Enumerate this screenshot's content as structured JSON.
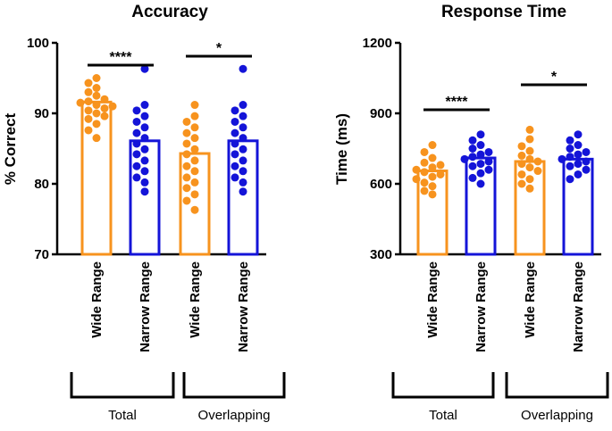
{
  "colors": {
    "wide": "#F7931E",
    "narrow": "#1414D8",
    "wide_bar": "#F7931E",
    "axis": "#000000"
  },
  "chart_data": [
    {
      "type": "bar",
      "title": "Accuracy",
      "ylabel": "% Correct",
      "ylim": [
        70,
        100
      ],
      "yticks": [
        70,
        80,
        90,
        100
      ],
      "categories": [
        "Wide Range",
        "Narrow Range",
        "Wide Range",
        "Narrow Range"
      ],
      "groups": [
        {
          "label": "Total",
          "categories": [
            0,
            1
          ]
        },
        {
          "label": "Overlapping",
          "categories": [
            2,
            3
          ]
        }
      ],
      "series": [
        {
          "values": [
            91.6,
            86.1,
            84.3,
            86.1
          ]
        }
      ],
      "points": [
        [
          95,
          94.3,
          93.6,
          93.0,
          92.5,
          92.0,
          91.7,
          91.5,
          91.2,
          91.0,
          90.7,
          90.4,
          90.0,
          89.6,
          89.2,
          88.5,
          87.6,
          86.5
        ],
        [
          96.3,
          91.2,
          90.4,
          89.6,
          88.8,
          88.0,
          87.2,
          86.5,
          85.7,
          84.9,
          84.2,
          83.3,
          82.5,
          81.8,
          80.9,
          80.2,
          78.9
        ],
        [
          91.2,
          89.6,
          88.8,
          88.0,
          87.2,
          86.5,
          85.7,
          84.9,
          84.2,
          83.3,
          82.5,
          81.8,
          80.9,
          80.2,
          79.4,
          78.5,
          77.6,
          76.3
        ],
        [
          96.3,
          91.2,
          90.4,
          89.6,
          88.8,
          88.0,
          87.2,
          86.5,
          85.7,
          84.9,
          84.2,
          83.3,
          82.5,
          81.8,
          80.9,
          80.2,
          78.9
        ]
      ],
      "significance": [
        {
          "from": 0,
          "to": 1,
          "label": "****"
        },
        {
          "from": 2,
          "to": 3,
          "label": "*"
        }
      ]
    },
    {
      "type": "bar",
      "title": "Response Time",
      "ylabel": "Time (ms)",
      "ylim": [
        300,
        1200
      ],
      "yticks": [
        300,
        600,
        900,
        1200
      ],
      "categories": [
        "Wide Range",
        "Narrow Range",
        "Wide Range",
        "Narrow Range"
      ],
      "groups": [
        {
          "label": "Total",
          "categories": [
            0,
            1
          ]
        },
        {
          "label": "Overlapping",
          "categories": [
            2,
            3
          ]
        }
      ],
      "series": [
        {
          "values": [
            655,
            710,
            695,
            705
          ]
        }
      ],
      "points": [
        [
          765,
          735,
          710,
          690,
          680,
          670,
          660,
          650,
          640,
          630,
          620,
          605,
          590,
          570,
          555
        ],
        [
          810,
          785,
          765,
          750,
          735,
          725,
          715,
          705,
          695,
          685,
          675,
          660,
          645,
          625,
          600
        ],
        [
          830,
          790,
          760,
          740,
          720,
          705,
          695,
          685,
          670,
          655,
          640,
          620,
          600,
          580
        ],
        [
          810,
          785,
          765,
          750,
          735,
          725,
          715,
          705,
          695,
          685,
          675,
          660,
          640,
          620
        ]
      ],
      "significance": [
        {
          "from": 0,
          "to": 1,
          "label": "****"
        },
        {
          "from": 2,
          "to": 3,
          "label": "*"
        }
      ]
    }
  ]
}
